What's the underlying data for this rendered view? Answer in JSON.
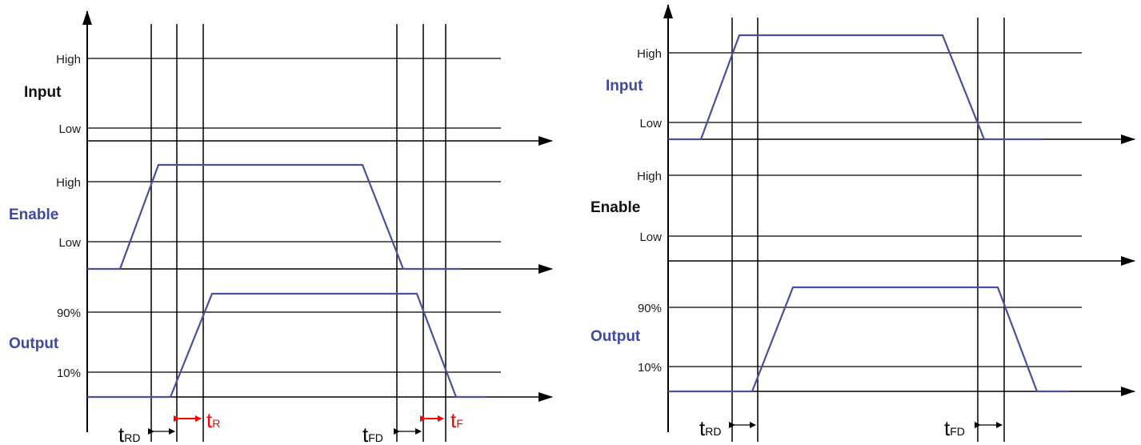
{
  "colors": {
    "waveform": "#4b4fa0",
    "grid": "#000000",
    "highlight": "#ff0000",
    "label_blue": "#3f49a0"
  },
  "left": {
    "input": {
      "name": "Input",
      "high": "High",
      "low": "Low"
    },
    "enable": {
      "name": "Enable",
      "high": "High",
      "low": "Low"
    },
    "output": {
      "name": "Output",
      "p90": "90%",
      "p10": "10%"
    },
    "timings": {
      "trd": {
        "base": "t",
        "sub": "RD"
      },
      "tr": {
        "base": "t",
        "sub": "R"
      },
      "tfd": {
        "base": "t",
        "sub": "FD"
      },
      "tf": {
        "base": "t",
        "sub": "F"
      }
    }
  },
  "right": {
    "input": {
      "name": "Input",
      "high": "High",
      "low": "Low"
    },
    "enable": {
      "name": "Enable",
      "high": "High",
      "low": "Low"
    },
    "output": {
      "name": "Output",
      "p90": "90%",
      "p10": "10%"
    },
    "timings": {
      "trd": {
        "base": "t",
        "sub": "RD"
      },
      "tfd": {
        "base": "t",
        "sub": "FD"
      }
    }
  }
}
